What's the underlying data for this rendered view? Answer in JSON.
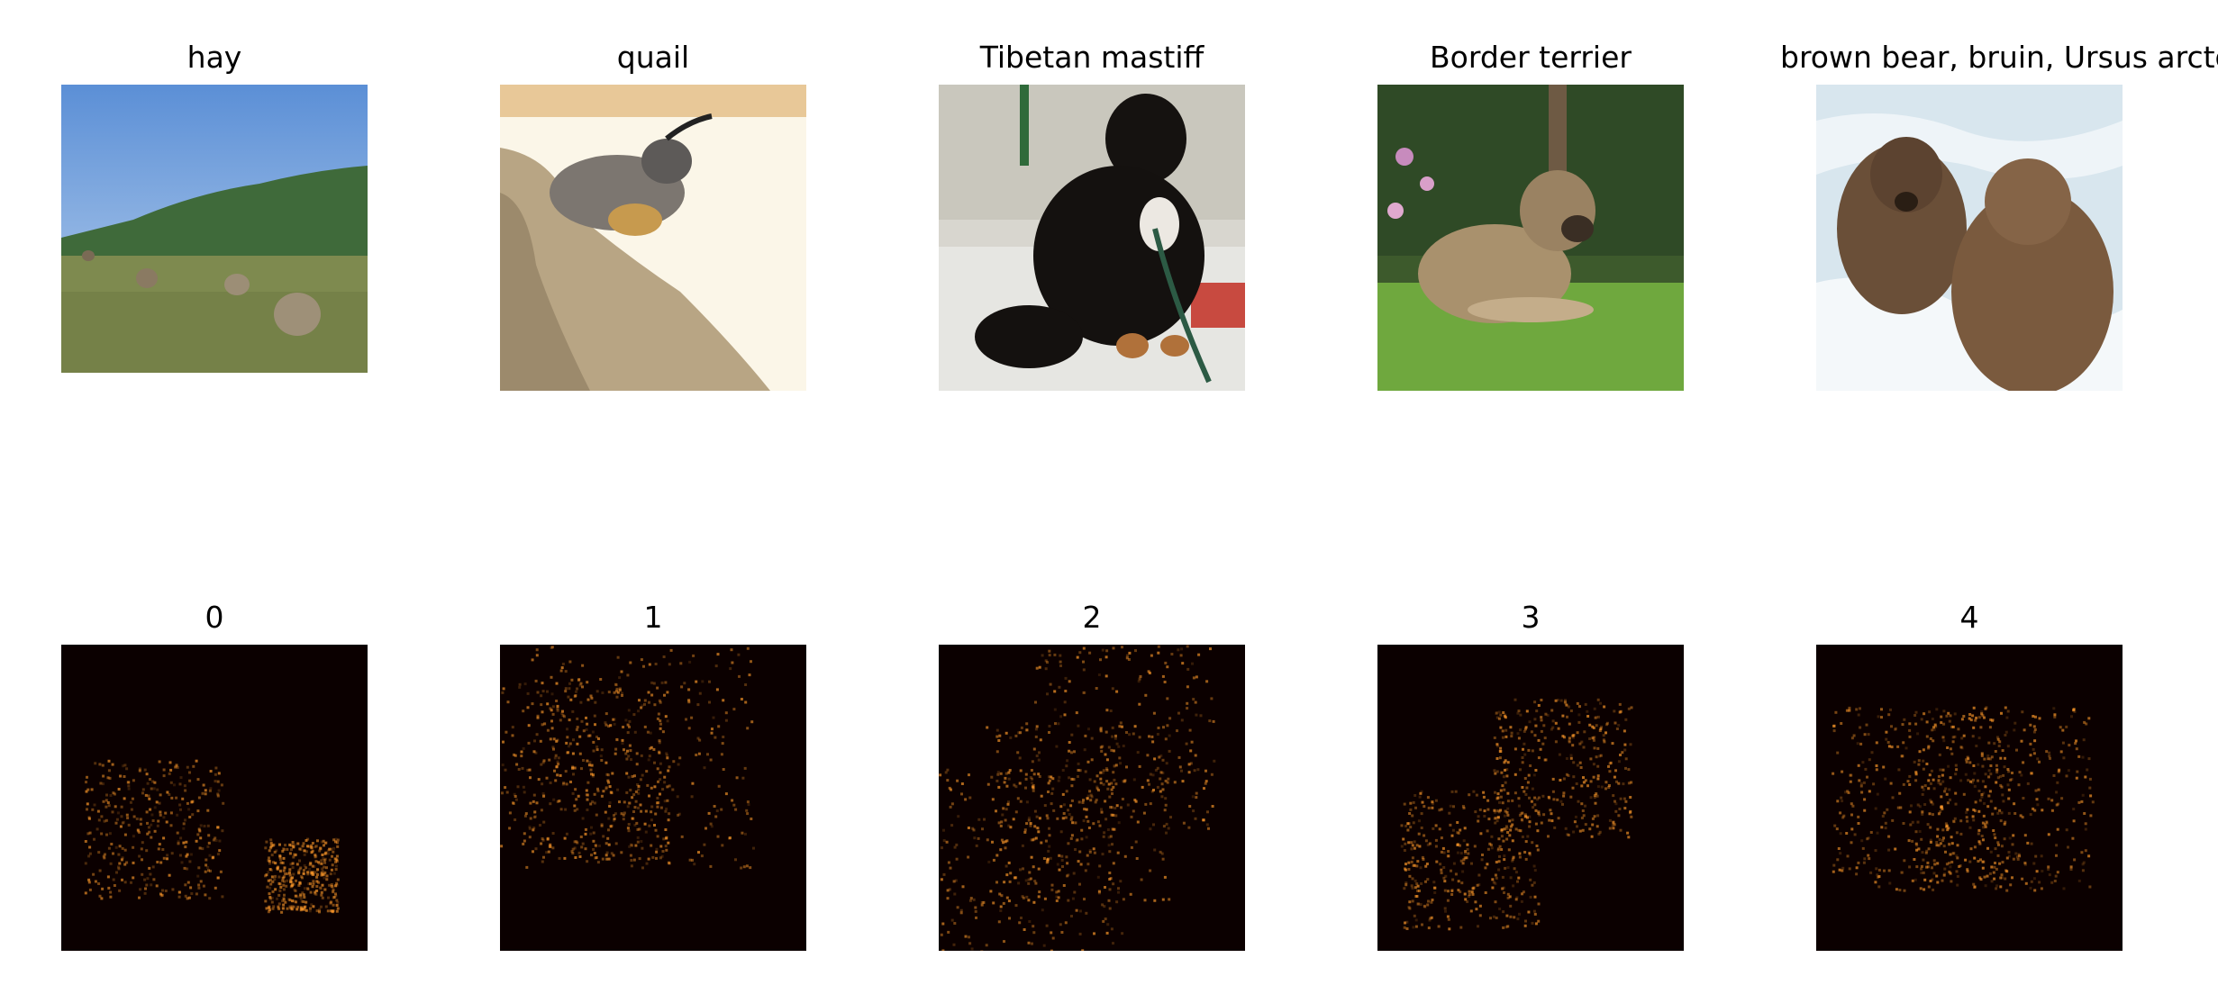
{
  "top_row": [
    {
      "title": "hay",
      "icon": "hay-bales-field-photo"
    },
    {
      "title": "quail",
      "icon": "quail-bird-photo"
    },
    {
      "title": "Tibetan mastiff",
      "icon": "black-dog-photo"
    },
    {
      "title": "Border terrier",
      "icon": "terrier-on-grass-photo"
    },
    {
      "title": "brown bear, bruin, Ursus arctos",
      "icon": "brown-bears-in-water-photo"
    }
  ],
  "bottom_row": [
    {
      "title": "0"
    },
    {
      "title": "1"
    },
    {
      "title": "2"
    },
    {
      "title": "3"
    },
    {
      "title": "4"
    }
  ],
  "colors": {
    "heatmap_background": "#0b0000",
    "heatmap_hot": "#ff9a2a"
  }
}
